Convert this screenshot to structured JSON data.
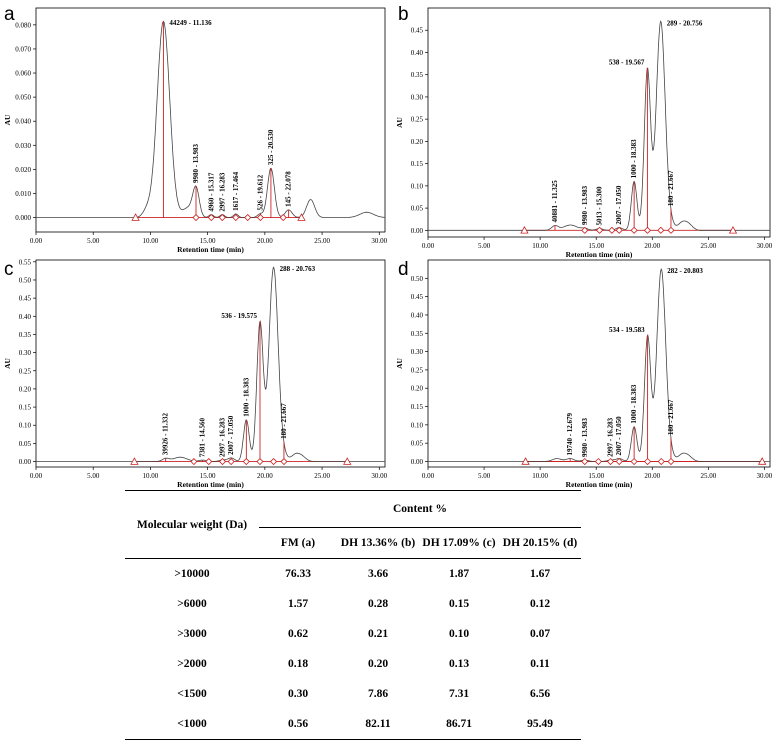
{
  "chart_data": [
    {
      "type": "line",
      "panel_label": "a",
      "xlabel": "Retention time (min)",
      "ylabel": "AU",
      "xlim": [
        0,
        30.5
      ],
      "ylim": [
        -0.006,
        0.087
      ],
      "x_ticks": [
        "0.00",
        "5.00",
        "10.00",
        "15.00",
        "20.00",
        "25.00",
        "30.00"
      ],
      "y_ticks": [
        "0.000",
        "0.010",
        "0.020",
        "0.030",
        "0.040",
        "0.050",
        "0.060",
        "0.070",
        "0.080"
      ],
      "y_tick_values": [
        0,
        0.01,
        0.02,
        0.03,
        0.04,
        0.05,
        0.06,
        0.07,
        0.08
      ],
      "baseline_range": [
        8.7,
        23.2
      ],
      "triangle_markers": [
        8.7,
        23.2
      ],
      "diamond_markers": [
        13.98,
        15.32,
        16.28,
        17.46,
        18.5,
        19.61,
        21.6
      ],
      "split_lines": [
        11.136,
        13.983,
        15.317,
        16.283,
        17.464,
        19.612,
        20.53,
        22.078
      ],
      "peaks": [
        {
          "label": "44249 - 11.136",
          "x": 11.136,
          "h": 0.0815,
          "w": 0.55,
          "vertical": false
        },
        {
          "label": "9980 - 13.983",
          "x": 13.983,
          "h": 0.0115,
          "w": 0.28,
          "vertical": true
        },
        {
          "label": "4960 - 15.317",
          "x": 15.317,
          "h": 0.0012,
          "w": 0.2,
          "vertical": true
        },
        {
          "label": "2997 - 16.283",
          "x": 16.283,
          "h": 0.0012,
          "w": 0.2,
          "vertical": true
        },
        {
          "label": "1617 - 17.464",
          "x": 17.464,
          "h": 0.0015,
          "w": 0.2,
          "vertical": true
        },
        {
          "label": "526 - 19.612",
          "x": 19.612,
          "h": 0.0015,
          "w": 0.25,
          "vertical": true
        },
        {
          "label": "325 - 20.530",
          "x": 20.53,
          "h": 0.0205,
          "w": 0.3,
          "vertical": true
        },
        {
          "label": "145 - 22.078",
          "x": 22.078,
          "h": 0.0032,
          "w": 0.3,
          "vertical": true
        }
      ],
      "extra_peaks": [
        {
          "x": 9.7,
          "h": 0.003,
          "w": 0.35
        },
        {
          "x": 13.3,
          "h": 0.004,
          "w": 0.5
        },
        {
          "x": 24.0,
          "h": 0.0075,
          "w": 0.35
        },
        {
          "x": 28.9,
          "h": 0.0022,
          "w": 0.6
        }
      ]
    },
    {
      "type": "line",
      "panel_label": "b",
      "xlabel": "Retention time (min)",
      "ylabel": "AU",
      "xlim": [
        0,
        30.5
      ],
      "ylim": [
        -0.015,
        0.5
      ],
      "x_ticks": [
        "0.00",
        "5.00",
        "10.00",
        "15.00",
        "20.00",
        "25.00",
        "30.00"
      ],
      "y_ticks": [
        "0.00",
        "0.05",
        "0.10",
        "0.15",
        "0.20",
        "0.25",
        "0.30",
        "0.35",
        "0.40",
        "0.45"
      ],
      "y_tick_values": [
        0,
        0.05,
        0.1,
        0.15,
        0.2,
        0.25,
        0.3,
        0.35,
        0.4,
        0.45
      ],
      "baseline_range": [
        8.6,
        27.2
      ],
      "triangle_markers": [
        8.6,
        27.2
      ],
      "diamond_markers": [
        13.98,
        15.3,
        16.4,
        17.05,
        18.38,
        19.57,
        20.76,
        21.67
      ],
      "split_lines": [
        11.325,
        13.983,
        15.3,
        17.05,
        18.383,
        19.567,
        21.667
      ],
      "peaks": [
        {
          "label": "40881 - 11.325",
          "x": 11.325,
          "h": 0.01,
          "w": 0.3,
          "vertical": true
        },
        {
          "label": "9980 - 13.983",
          "x": 13.983,
          "h": 0.004,
          "w": 0.3,
          "vertical": true
        },
        {
          "label": "5013 - 15.300",
          "x": 15.3,
          "h": 0.004,
          "w": 0.3,
          "vertical": true
        },
        {
          "label": "2007 - 17.050",
          "x": 17.05,
          "h": 0.006,
          "w": 0.3,
          "vertical": true
        },
        {
          "label": "1000 - 18.383",
          "x": 18.383,
          "h": 0.11,
          "w": 0.25,
          "vertical": true
        },
        {
          "label": "538 - 19.567",
          "x": 19.567,
          "h": 0.36,
          "w": 0.28,
          "vertical": false
        },
        {
          "label": "289 - 20.756",
          "x": 20.756,
          "h": 0.47,
          "w": 0.4,
          "vertical": false
        },
        {
          "label": "180 - 21.667",
          "x": 21.667,
          "h": 0.012,
          "w": 0.3,
          "vertical": true
        }
      ],
      "extra_peaks": [
        {
          "x": 12.7,
          "h": 0.012,
          "w": 0.6
        },
        {
          "x": 22.7,
          "h": 0.018,
          "w": 0.4
        },
        {
          "x": 23.3,
          "h": 0.01,
          "w": 0.35
        }
      ]
    },
    {
      "type": "line",
      "panel_label": "c",
      "xlabel": "Retention time (min)",
      "ylabel": "AU",
      "xlim": [
        0,
        30.5
      ],
      "ylim": [
        -0.015,
        0.555
      ],
      "x_ticks": [
        "0.00",
        "5.00",
        "10.00",
        "15.00",
        "20.00",
        "25.00",
        "30.00"
      ],
      "y_ticks": [
        "0.00",
        "0.05",
        "0.10",
        "0.15",
        "0.20",
        "0.25",
        "0.30",
        "0.35",
        "0.40",
        "0.45",
        "0.50",
        "0.55"
      ],
      "y_tick_values": [
        0,
        0.05,
        0.1,
        0.15,
        0.2,
        0.25,
        0.3,
        0.35,
        0.4,
        0.45,
        0.5,
        0.55
      ],
      "baseline_range": [
        8.6,
        27.2
      ],
      "triangle_markers": [
        8.6,
        27.2
      ],
      "diamond_markers": [
        13.8,
        15.1,
        16.3,
        17.05,
        18.38,
        19.57,
        20.76,
        21.67
      ],
      "split_lines": [
        11.332,
        14.56,
        16.283,
        17.05,
        18.383,
        19.575,
        21.667
      ],
      "peaks": [
        {
          "label": "39926 - 11.332",
          "x": 11.332,
          "h": 0.008,
          "w": 0.3,
          "vertical": true
        },
        {
          "label": "7381 - 14.560",
          "x": 14.56,
          "h": 0.004,
          "w": 0.3,
          "vertical": true
        },
        {
          "label": "2997 - 16.283",
          "x": 16.283,
          "h": 0.004,
          "w": 0.3,
          "vertical": true
        },
        {
          "label": "2007 - 17.050",
          "x": 17.05,
          "h": 0.01,
          "w": 0.3,
          "vertical": true
        },
        {
          "label": "1000 - 18.383",
          "x": 18.383,
          "h": 0.115,
          "w": 0.25,
          "vertical": true
        },
        {
          "label": "536 - 19.575",
          "x": 19.575,
          "h": 0.38,
          "w": 0.28,
          "vertical": false
        },
        {
          "label": "288 - 20.763",
          "x": 20.763,
          "h": 0.535,
          "w": 0.4,
          "vertical": false
        },
        {
          "label": "180 - 21.667",
          "x": 21.667,
          "h": 0.012,
          "w": 0.3,
          "vertical": true
        }
      ],
      "extra_peaks": [
        {
          "x": 12.6,
          "h": 0.012,
          "w": 0.6
        },
        {
          "x": 22.7,
          "h": 0.02,
          "w": 0.4
        },
        {
          "x": 23.3,
          "h": 0.01,
          "w": 0.35
        }
      ]
    },
    {
      "type": "line",
      "panel_label": "d",
      "xlabel": "Retention time (min)",
      "ylabel": "AU",
      "xlim": [
        0,
        30.5
      ],
      "ylim": [
        -0.015,
        0.55
      ],
      "x_ticks": [
        "0.00",
        "5.00",
        "10.00",
        "15.00",
        "20.00",
        "25.00",
        "30.00"
      ],
      "y_ticks": [
        "0.00",
        "0.05",
        "0.10",
        "0.15",
        "0.20",
        "0.25",
        "0.30",
        "0.35",
        "0.40",
        "0.45",
        "0.50"
      ],
      "y_tick_values": [
        0,
        0.05,
        0.1,
        0.15,
        0.2,
        0.25,
        0.3,
        0.35,
        0.4,
        0.45,
        0.5
      ],
      "baseline_range": [
        8.7,
        29.8
      ],
      "triangle_markers": [
        8.7,
        29.8
      ],
      "diamond_markers": [
        13.98,
        15.2,
        16.28,
        17.05,
        18.38,
        19.58,
        20.8,
        21.67
      ],
      "split_lines": [
        12.679,
        13.983,
        16.283,
        17.05,
        18.383,
        19.583,
        21.667
      ],
      "peaks": [
        {
          "label": "19740 - 12.679",
          "x": 12.679,
          "h": 0.008,
          "w": 0.35,
          "vertical": true
        },
        {
          "label": "9980 - 13.983",
          "x": 13.983,
          "h": 0.004,
          "w": 0.3,
          "vertical": true
        },
        {
          "label": "2997 - 16.283",
          "x": 16.283,
          "h": 0.004,
          "w": 0.3,
          "vertical": true
        },
        {
          "label": "2007 - 17.050",
          "x": 17.05,
          "h": 0.008,
          "w": 0.3,
          "vertical": true
        },
        {
          "label": "1000 - 18.383",
          "x": 18.383,
          "h": 0.095,
          "w": 0.25,
          "vertical": true
        },
        {
          "label": "534 - 19.583",
          "x": 19.583,
          "h": 0.34,
          "w": 0.28,
          "vertical": false
        },
        {
          "label": "282 - 20.803",
          "x": 20.803,
          "h": 0.525,
          "w": 0.4,
          "vertical": false
        },
        {
          "label": "180 - 21.667",
          "x": 21.667,
          "h": 0.012,
          "w": 0.3,
          "vertical": true
        }
      ],
      "extra_peaks": [
        {
          "x": 11.5,
          "h": 0.008,
          "w": 0.4
        },
        {
          "x": 22.7,
          "h": 0.02,
          "w": 0.4
        },
        {
          "x": 23.3,
          "h": 0.01,
          "w": 0.35
        }
      ]
    },
    {
      "type": "table",
      "row_header": "Molecular weight (Da)",
      "group_header": "Content %",
      "columns": [
        "FM (a)",
        "DH 13.36% (b)",
        "DH 17.09% (c)",
        "DH 20.15% (d)"
      ],
      "rows": [
        {
          "label": ">10000",
          "values": [
            "76.33",
            "3.66",
            "1.87",
            "1.67"
          ]
        },
        {
          "label": ">6000",
          "values": [
            "1.57",
            "0.28",
            "0.15",
            "0.12"
          ]
        },
        {
          "label": ">3000",
          "values": [
            "0.62",
            "0.21",
            "0.10",
            "0.07"
          ]
        },
        {
          "label": ">2000",
          "values": [
            "0.18",
            "0.20",
            "0.13",
            "0.11"
          ]
        },
        {
          "label": "<1500",
          "values": [
            "0.30",
            "7.86",
            "7.31",
            "6.56"
          ]
        },
        {
          "label": "<1000",
          "values": [
            "0.56",
            "82.11",
            "86.71",
            "95.49"
          ]
        }
      ]
    }
  ],
  "colors": {
    "trace": "#444444",
    "baseline": "#cc2222",
    "markers": "#cc2222",
    "axis": "#000000"
  }
}
